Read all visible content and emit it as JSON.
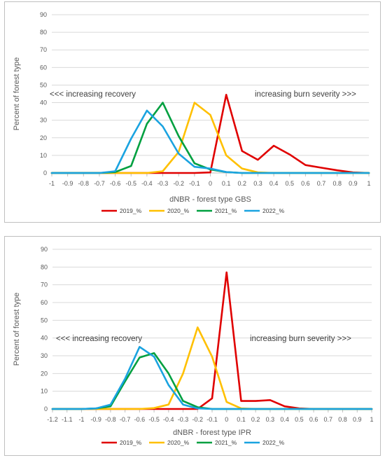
{
  "chart_data": [
    {
      "type": "line",
      "title": "",
      "xlabel": "dNBR - forest type GBS",
      "ylabel": "Percent of forest type",
      "xlim": [
        -1,
        1
      ],
      "ylim": [
        0,
        90
      ],
      "x_ticks": [
        "-1",
        "-0.9",
        "-0.8",
        "-0.7",
        "-0.6",
        "-0.5",
        "-0.4",
        "-0.3",
        "-0.2",
        "-0.1",
        "0",
        "0.1",
        "0.2",
        "0.3",
        "0.4",
        "0.5",
        "0.6",
        "0.7",
        "0.8",
        "0.9",
        "1"
      ],
      "y_ticks": [
        "0",
        "10",
        "20",
        "30",
        "40",
        "50",
        "60",
        "70",
        "80",
        "90"
      ],
      "grid": "horizontal",
      "legend_position": "bottom",
      "annotations": [
        "<<< increasing recovery",
        "increasing burn  severity >>>"
      ],
      "x": [
        -1,
        -0.9,
        -0.8,
        -0.7,
        -0.6,
        -0.5,
        -0.4,
        -0.3,
        -0.2,
        -0.1,
        0,
        0.1,
        0.2,
        0.3,
        0.4,
        0.5,
        0.6,
        0.7,
        0.8,
        0.9,
        1
      ],
      "series": [
        {
          "name": "2019_%",
          "color": "#e00000",
          "values": [
            0,
            0,
            0,
            0,
            0,
            0,
            0,
            0,
            0,
            0,
            0.3,
            44.5,
            12.5,
            7.5,
            15.5,
            10.5,
            4.5,
            3,
            1.5,
            0.3,
            0
          ]
        },
        {
          "name": "2020_%",
          "color": "#ffc000",
          "values": [
            0,
            0,
            0,
            0,
            0,
            0,
            0,
            1,
            12,
            40,
            33,
            10,
            2.5,
            0.3,
            0,
            0,
            0,
            0,
            0,
            0,
            0
          ]
        },
        {
          "name": "2021_%",
          "color": "#00a040",
          "values": [
            0,
            0,
            0,
            0,
            0.5,
            4,
            28,
            40,
            21,
            5.5,
            2,
            0.5,
            0,
            0,
            0,
            0,
            0,
            0,
            0,
            0,
            0
          ]
        },
        {
          "name": "2022_%",
          "color": "#1aa3e0",
          "values": [
            0,
            0,
            0,
            0,
            1,
            19.5,
            35.5,
            26.5,
            11,
            3.5,
            2.5,
            0.5,
            0,
            0,
            0,
            0,
            0,
            0,
            0,
            0,
            0
          ]
        }
      ]
    },
    {
      "type": "line",
      "title": "",
      "xlabel": "dNBR - forest type  IPR",
      "ylabel": "Percent of forest type",
      "xlim": [
        -1.2,
        1
      ],
      "ylim": [
        0,
        90
      ],
      "x_ticks": [
        "-1.2",
        "-1.1",
        "-1",
        "-0.9",
        "-0.8",
        "-0.7",
        "-0.6",
        "-0.5",
        "-0.4",
        "-0.3",
        "-0.2",
        "-0.1",
        "0",
        "0.1",
        "0.2",
        "0.3",
        "0.4",
        "0.5",
        "0.6",
        "0.7",
        "0.8",
        "0.9",
        "1"
      ],
      "y_ticks": [
        "0",
        "10",
        "20",
        "30",
        "40",
        "50",
        "60",
        "70",
        "80",
        "90"
      ],
      "grid": "horizontal",
      "legend_position": "bottom",
      "annotations": [
        "<<< increasing recovery",
        "increasing burn  severity >>>"
      ],
      "x": [
        -1.2,
        -1.1,
        -1,
        -0.9,
        -0.8,
        -0.7,
        -0.6,
        -0.5,
        -0.4,
        -0.3,
        -0.2,
        -0.1,
        0,
        0.1,
        0.2,
        0.3,
        0.4,
        0.5,
        0.6,
        0.7,
        0.8,
        0.9,
        1
      ],
      "series": [
        {
          "name": "2019_%",
          "color": "#e00000",
          "values": [
            0,
            0,
            0,
            0,
            0,
            0,
            0,
            0,
            0,
            0,
            0,
            6,
            77,
            4.5,
            4.5,
            5,
            1.5,
            0.3,
            0,
            0,
            0,
            0,
            0
          ]
        },
        {
          "name": "2020_%",
          "color": "#ffc000",
          "values": [
            0,
            0,
            0,
            0,
            0,
            0,
            0,
            0.5,
            2.5,
            20,
            46,
            29.5,
            4,
            0.3,
            0,
            0,
            0,
            0,
            0,
            0,
            0,
            0,
            0
          ]
        },
        {
          "name": "2021_%",
          "color": "#00a040",
          "values": [
            0,
            0,
            0,
            0.3,
            1.5,
            15.5,
            29,
            31.5,
            20,
            4.5,
            1,
            0,
            0,
            0,
            0,
            0,
            0,
            0,
            0,
            0,
            0,
            0,
            0
          ]
        },
        {
          "name": "2022_%",
          "color": "#1aa3e0",
          "values": [
            0,
            0,
            0,
            0.3,
            2.5,
            17,
            35,
            29.5,
            13.5,
            2.5,
            0.3,
            0,
            0,
            0,
            0,
            0,
            0,
            0,
            0,
            0,
            0,
            0,
            0
          ]
        }
      ]
    }
  ]
}
